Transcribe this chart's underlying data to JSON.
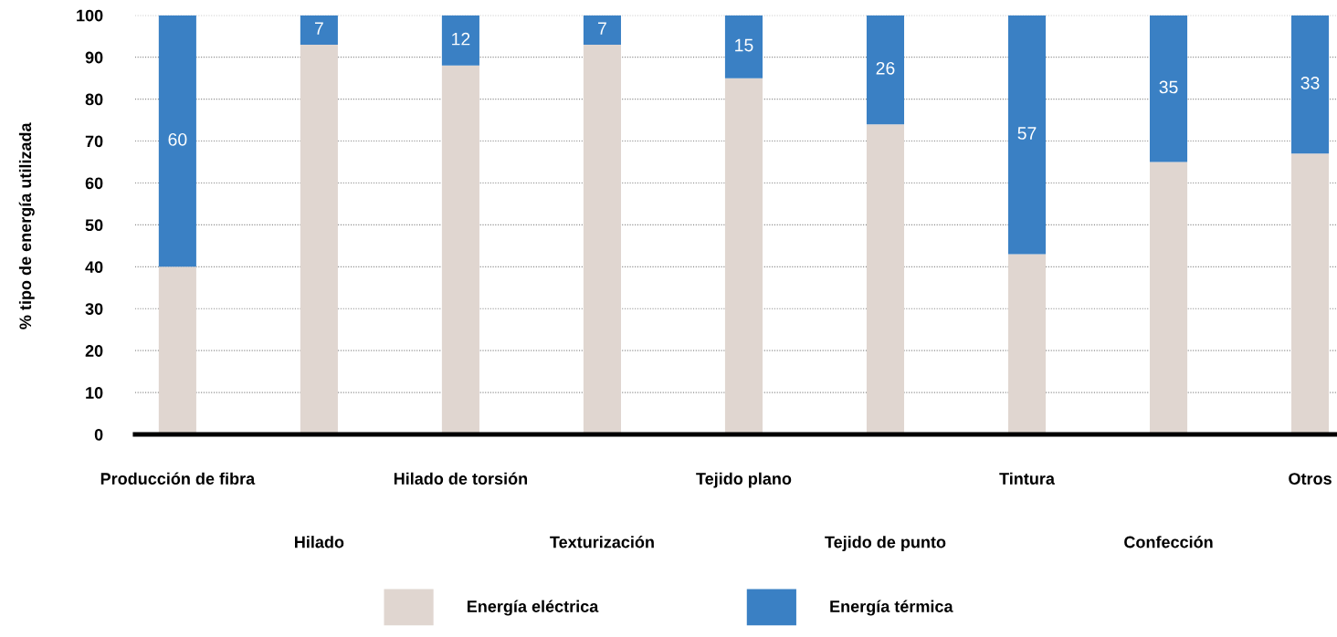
{
  "chart_data": {
    "type": "bar",
    "stacked": true,
    "ylabel": "% tipo de energía utilizada",
    "categories": [
      "Producción de fibra",
      "Hilado",
      "Hilado de torsión",
      "Texturización",
      "Tejido plano",
      "Tejido de punto",
      "Tintura",
      "Confección",
      "Otros"
    ],
    "series": [
      {
        "name": "Energía eléctrica",
        "color": "#e0d6d0",
        "values": [
          40,
          93,
          88,
          93,
          85,
          74,
          43,
          65,
          67
        ]
      },
      {
        "name": "Energía térmica",
        "color": "#3a80c4",
        "values": [
          60,
          7,
          12,
          7,
          15,
          26,
          57,
          35,
          33
        ],
        "value_labels": [
          "60",
          "7",
          "12",
          "7",
          "15",
          "26",
          "57",
          "35",
          "33"
        ]
      }
    ],
    "ylim": [
      0,
      100
    ],
    "yticks": [
      0,
      10,
      20,
      30,
      40,
      50,
      60,
      70,
      80,
      90,
      100
    ],
    "grid": "y",
    "legend": "bottom"
  }
}
